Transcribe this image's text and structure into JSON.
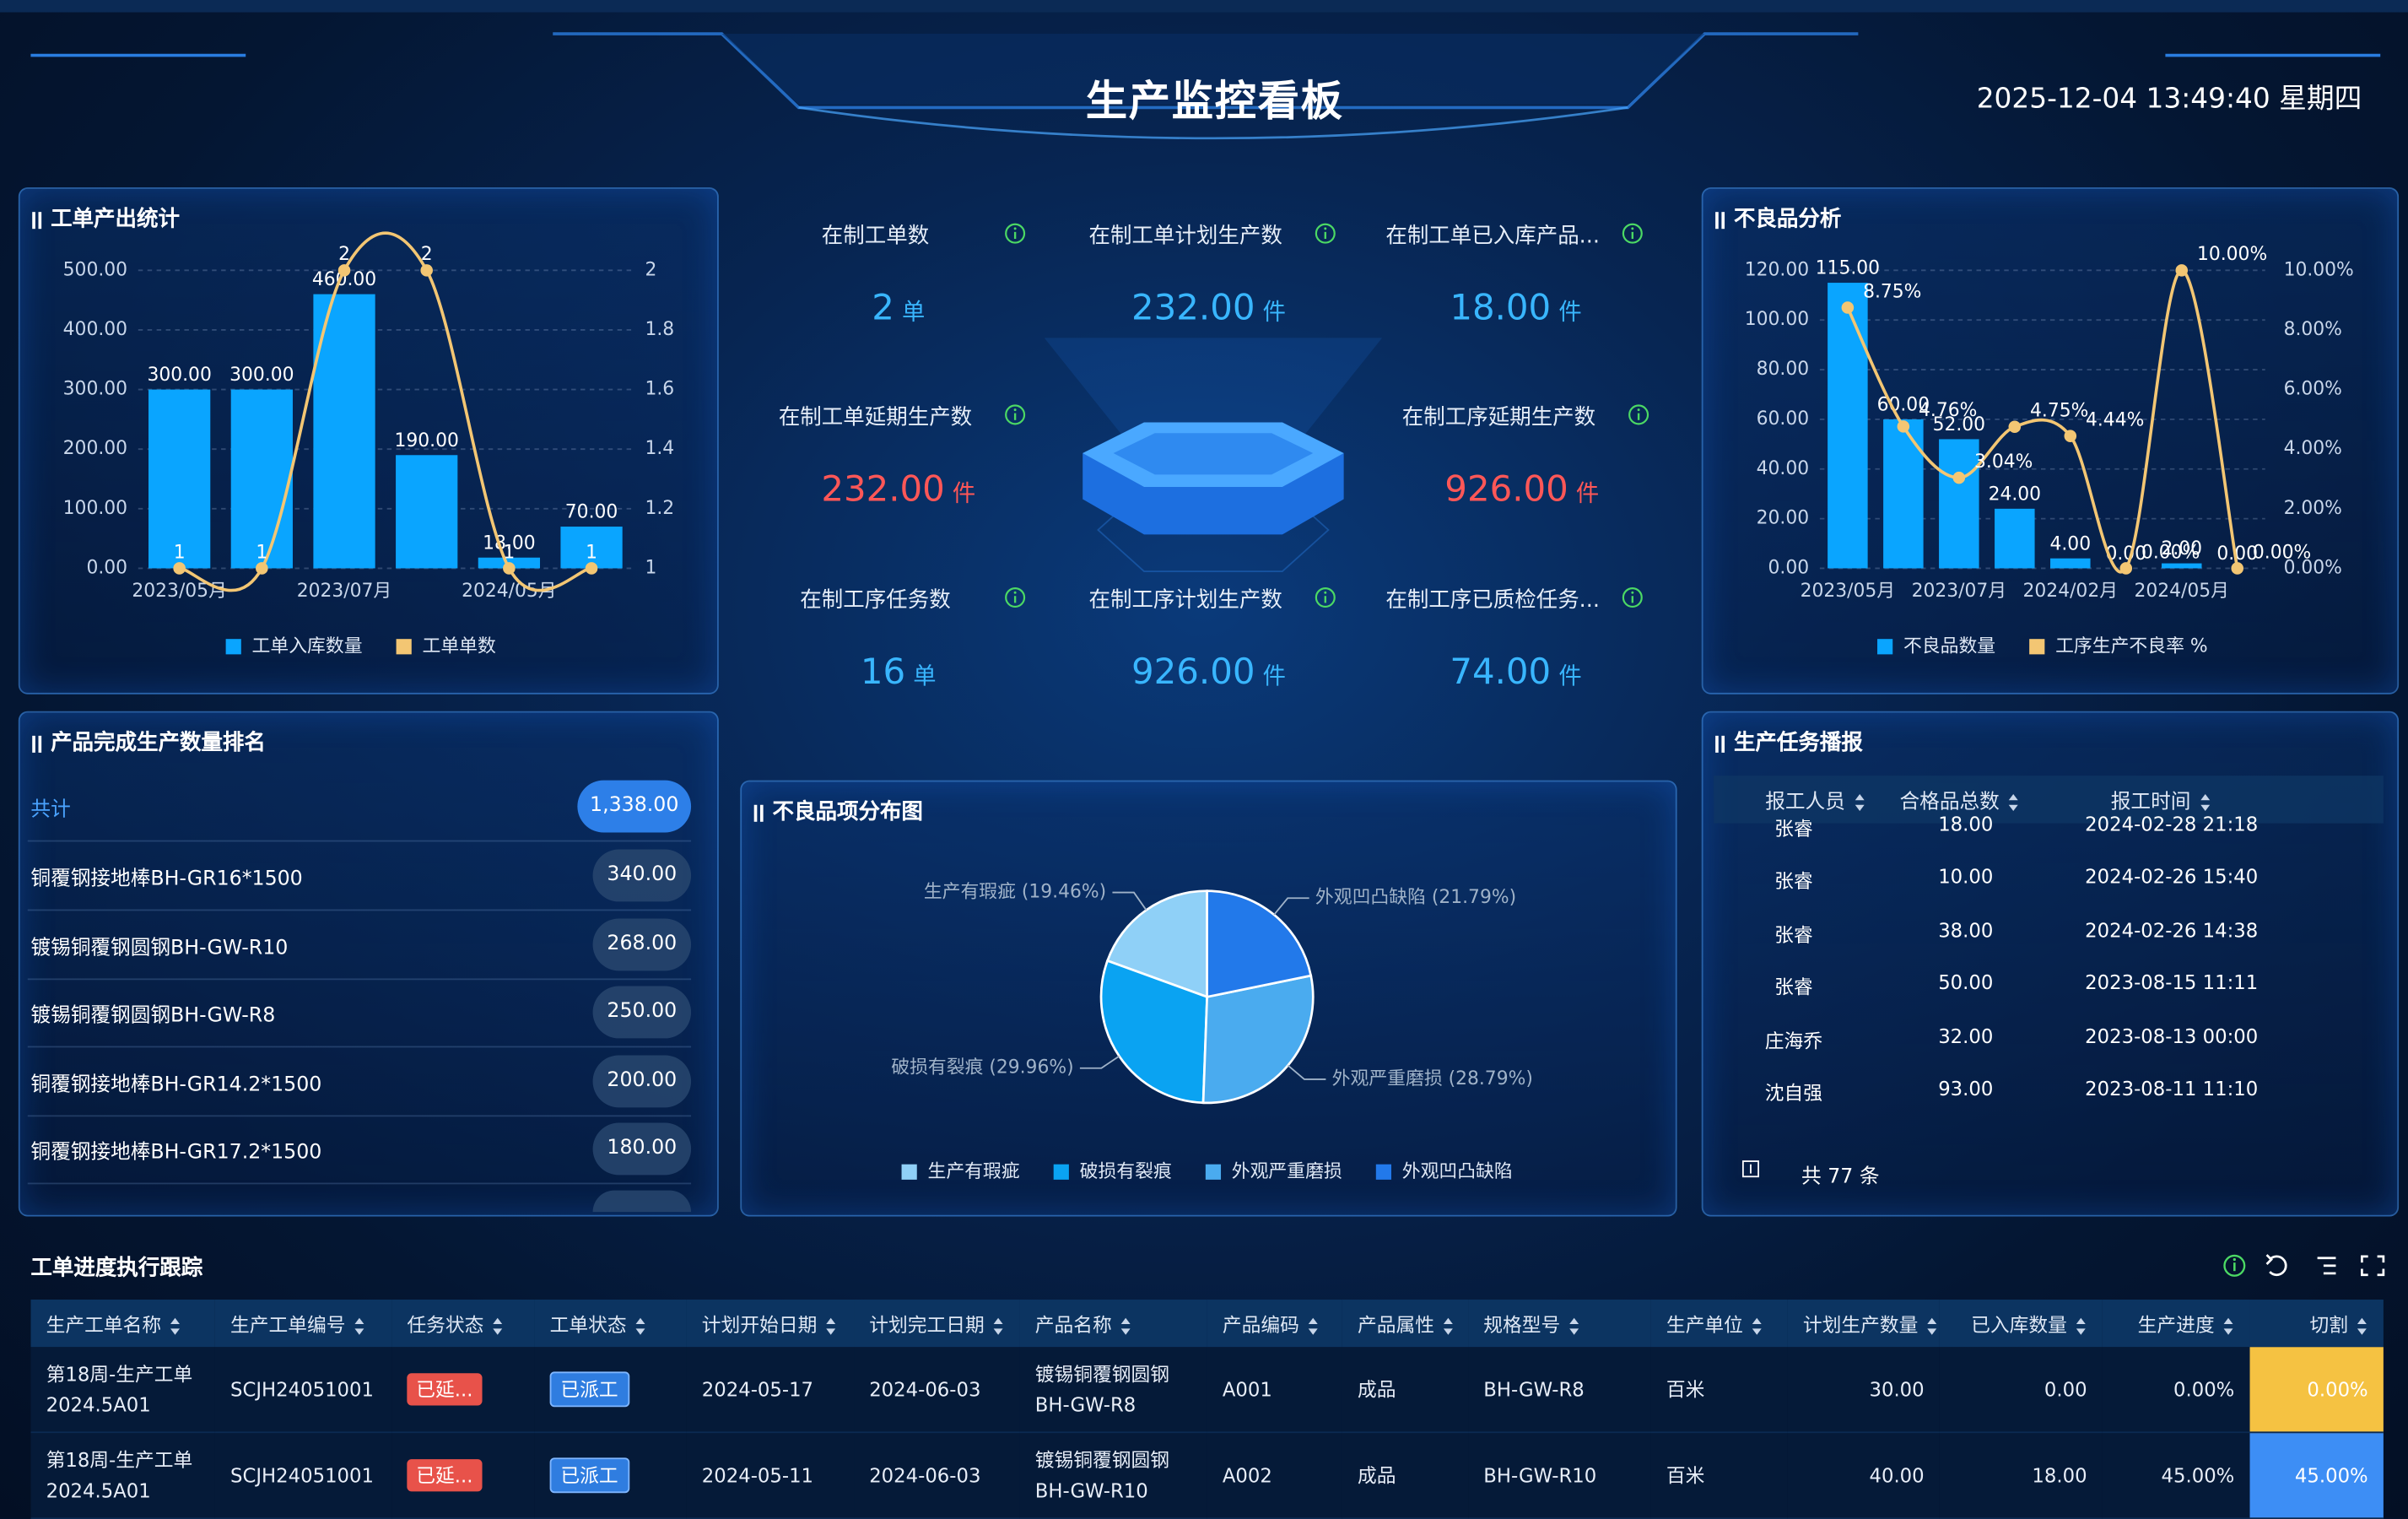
{
  "header": {
    "title": "生产监控看板",
    "datetime": "2025-12-04 13:49:40 星期四"
  },
  "kpis": [
    {
      "label": "在制工单数",
      "value": "2",
      "unit": "单"
    },
    {
      "label": "在制工单计划生产数",
      "value": "232.00",
      "unit": "件"
    },
    {
      "label": "在制工单已入库产品...",
      "value": "18.00",
      "unit": "件"
    },
    {
      "label": "在制工单延期生产数",
      "value": "232.00",
      "unit": "件"
    },
    {
      "label": "在制工序延期生产数",
      "value": "926.00",
      "unit": "件"
    },
    {
      "label": "在制工序任务数",
      "value": "16",
      "unit": "单"
    },
    {
      "label": "在制工序计划生产数",
      "value": "926.00",
      "unit": "件"
    },
    {
      "label": "在制工序已质检任务...",
      "value": "74.00",
      "unit": "件"
    }
  ],
  "chart_data": [
    {
      "type": "bar",
      "title": "工单产出统计",
      "categories": [
        "2023/05月",
        null,
        "2023/07月",
        null,
        "2024/05月",
        null
      ],
      "series": [
        {
          "name": "工单入库数量",
          "type": "bar",
          "color": "#0aa5ff",
          "values": [
            300,
            300,
            460,
            190,
            18,
            70
          ],
          "value_labels": [
            "300.00",
            "300.00",
            "460.00",
            "190.00",
            "18.00",
            "70.00"
          ]
        },
        {
          "name": "工单单数",
          "type": "line",
          "axis": "y2",
          "color": "#f3c673",
          "values": [
            1,
            1,
            2,
            2,
            1,
            1
          ]
        }
      ],
      "ylim": [
        0,
        500
      ],
      "yticks": [
        {
          "value": 0,
          "label": "0.00"
        },
        {
          "value": 100,
          "label": "100.00"
        },
        {
          "value": 200,
          "label": "200.00"
        },
        {
          "value": 300,
          "label": "300.00"
        },
        {
          "value": 400,
          "label": "400.00"
        },
        {
          "value": 500,
          "label": "500.00"
        }
      ],
      "y2lim": [
        1,
        2
      ],
      "y2ticks": [
        1,
        1.2,
        1.4,
        1.6,
        1.8,
        2
      ],
      "grid": true,
      "legend": "bottom"
    },
    {
      "type": "bar",
      "title": "不良品分析",
      "categories": [
        "2023/05月",
        null,
        "2023/07月",
        null,
        "2024/02月",
        null,
        "2024/05月",
        null
      ],
      "series": [
        {
          "name": "不良品数量",
          "type": "bar",
          "color": "#0aa5ff",
          "values": [
            115,
            60,
            52,
            24,
            4,
            0,
            2,
            0
          ],
          "value_labels": [
            "115.00",
            "60.00",
            "52.00",
            "24.00",
            "4.00",
            "0.00",
            "2.00",
            "0.00"
          ]
        },
        {
          "name": "工序生产不良率 %",
          "type": "line",
          "axis": "y2",
          "color": "#f3c673",
          "values": [
            8.75,
            4.76,
            3.04,
            4.75,
            4.44,
            0,
            10,
            0
          ],
          "value_labels": [
            "8.75%",
            "4.76%",
            "3.04%",
            "4.75%",
            "4.44%",
            "0.00%",
            "10.00%",
            "0.00%"
          ]
        }
      ],
      "ylim": [
        0,
        120
      ],
      "yticks": [
        {
          "value": 0,
          "label": "0.00"
        },
        {
          "value": 20,
          "label": "20.00"
        },
        {
          "value": 40,
          "label": "40.00"
        },
        {
          "value": 60,
          "label": "60.00"
        },
        {
          "value": 80,
          "label": "80.00"
        },
        {
          "value": 100,
          "label": "100.00"
        },
        {
          "value": 120,
          "label": "120.00"
        }
      ],
      "y2lim": [
        0,
        10
      ],
      "y2ticks": [
        {
          "value": 0,
          "label": "0.00%"
        },
        {
          "value": 2,
          "label": "2.00%"
        },
        {
          "value": 4,
          "label": "4.00%"
        },
        {
          "value": 6,
          "label": "6.00%"
        },
        {
          "value": 8,
          "label": "8.00%"
        },
        {
          "value": 10,
          "label": "10.00%"
        }
      ],
      "grid": true,
      "legend": "bottom"
    },
    {
      "type": "pie",
      "title": "不良品项分布图",
      "categories": [
        "生产有瑕疵",
        "破损有裂痕",
        "外观严重磨损",
        "外观凹凸缺陷"
      ],
      "values": [
        19.46,
        29.96,
        28.79,
        21.79
      ],
      "value_labels": [
        "生产有瑕疵 (19.46%)",
        "破损有裂痕 (29.96%)",
        "外观严重磨损 (28.79%)",
        "外观凹凸缺陷 (21.79%)"
      ],
      "colors": [
        "#8fd0f7",
        "#0aa3f2",
        "#4aabef",
        "#2279ea"
      ],
      "legend": "bottom"
    }
  ],
  "ranking": {
    "title": "产品完成生产数量排名",
    "total_label": "共计",
    "total": "1,338.00",
    "items": [
      {
        "name": "铜覆钢接地棒BH-GR16*1500",
        "value": "340.00"
      },
      {
        "name": "镀锡铜覆钢圆钢BH-GW-R10",
        "value": "268.00"
      },
      {
        "name": "镀锡铜覆钢圆钢BH-GW-R8",
        "value": "250.00"
      },
      {
        "name": "铜覆钢接地棒BH-GR14.2*1500",
        "value": "200.00"
      },
      {
        "name": "铜覆钢接地棒BH-GR17.2*1500",
        "value": "180.00"
      }
    ]
  },
  "reports": {
    "title": "生产任务播报",
    "columns": [
      "报工人员",
      "合格品总数",
      "报工时间"
    ],
    "rows": [
      [
        "张睿",
        "18.00",
        "2024-02-28 21:18"
      ],
      [
        "张睿",
        "10.00",
        "2024-02-26 15:40"
      ],
      [
        "张睿",
        "38.00",
        "2024-02-26 14:38"
      ],
      [
        "张睿",
        "50.00",
        "2023-08-15 11:11"
      ],
      [
        "庄海乔",
        "32.00",
        "2023-08-13 00:00"
      ],
      [
        "沈自强",
        "93.00",
        "2023-08-11 11:10"
      ]
    ],
    "total": "共 77 条"
  },
  "table": {
    "title": "工单进度执行跟踪",
    "columns": [
      "生产工单名称",
      "生产工单编号",
      "任务状态",
      "工单状态",
      "计划开始日期",
      "计划完工日期",
      "产品名称",
      "产品编码",
      "产品属性",
      "规格型号",
      "生产单位",
      "计划生产数量",
      "已入库数量",
      "生产进度",
      "切割"
    ],
    "rows": [
      [
        "第18周-生产工单2024.5A01",
        "SCJH24051001",
        "已延...",
        "已派工",
        "2024-05-17",
        "2024-06-03",
        "镀锡铜覆钢圆钢BH-GW-R8",
        "A001",
        "成品",
        "BH-GW-R8",
        "百米",
        "30.00",
        "0.00",
        "0.00%",
        "0.00%"
      ],
      [
        "第18周-生产工单2024.5A01",
        "SCJH24051001",
        "已延...",
        "已派工",
        "2024-05-11",
        "2024-06-03",
        "镀锡铜覆钢圆钢BH-GW-R10",
        "A002",
        "成品",
        "BH-GW-R10",
        "百米",
        "40.00",
        "18.00",
        "45.00%",
        "45.00%"
      ]
    ]
  }
}
